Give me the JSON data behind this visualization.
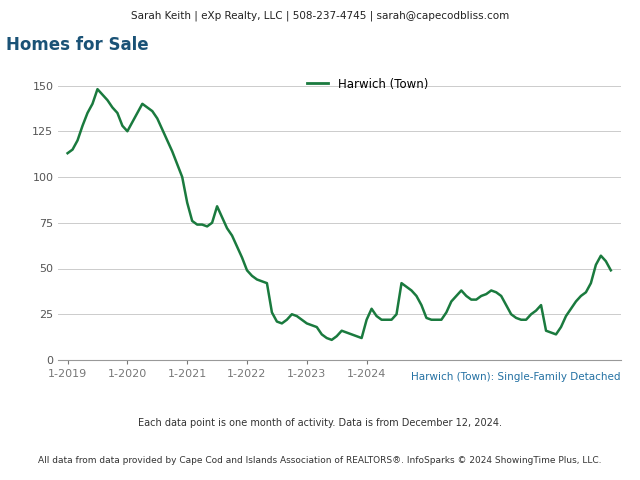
{
  "header_text": "Sarah Keith | eXp Realty, LLC | 508-237-4745 | sarah@capecodbliss.com",
  "title": "Homes for Sale",
  "legend_label": "Harwich (Town)",
  "subtitle_blue": "Harwich (Town): Single-Family Detached",
  "footer1": "Each data point is one month of activity. Data is from December 12, 2024.",
  "footer2": "All data from data provided by Cape Cod and Islands Association of REALTORS®. InfoSparks © 2024 ShowingTime Plus, LLC.",
  "line_color": "#1a7a3e",
  "header_bg": "#e0e0e0",
  "title_color": "#1a5276",
  "subtitle_color": "#2471a3",
  "ylim": [
    0,
    160
  ],
  "yticks": [
    0,
    25,
    50,
    75,
    100,
    125,
    150
  ],
  "x_labels": [
    "1-2019",
    "1-2020",
    "1-2021",
    "1-2022",
    "1-2023",
    "1-2024"
  ],
  "values": [
    113,
    115,
    120,
    128,
    135,
    140,
    148,
    145,
    142,
    138,
    135,
    128,
    125,
    130,
    135,
    140,
    138,
    136,
    132,
    126,
    120,
    114,
    107,
    100,
    86,
    76,
    74,
    74,
    73,
    75,
    84,
    78,
    72,
    68,
    62,
    56,
    49,
    46,
    44,
    43,
    42,
    26,
    21,
    20,
    22,
    25,
    24,
    22,
    20,
    19,
    18,
    14,
    12,
    11,
    13,
    16,
    15,
    14,
    13,
    12,
    22,
    28,
    24,
    22,
    22,
    22,
    25,
    42,
    40,
    38,
    35,
    30,
    23,
    22,
    22,
    22,
    26,
    32,
    35,
    38,
    35,
    33,
    33,
    35,
    36,
    38,
    37,
    35,
    30,
    25,
    23,
    22,
    22,
    25,
    27,
    30,
    16,
    15,
    14,
    18,
    24,
    28,
    32,
    35,
    37,
    42,
    52,
    57,
    54,
    49
  ]
}
